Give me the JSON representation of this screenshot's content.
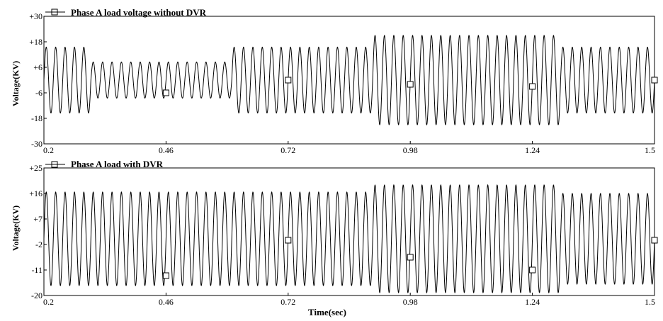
{
  "chart_data": [
    {
      "type": "line",
      "title": "Phase A load voltage without DVR",
      "xlabel": "",
      "ylabel": "Voltage(KV)",
      "xlim": [
        0.2,
        1.5
      ],
      "ylim": [
        -30,
        30
      ],
      "x_ticks": [
        "0.2",
        "0.46",
        "0.72",
        "0.98",
        "1.24",
        "1.5"
      ],
      "y_ticks": [
        "+30",
        "+18",
        "+6",
        "-6",
        "-18",
        "-30"
      ],
      "frequency_hz": 50,
      "series": [
        {
          "name": "Phase A load voltage without DVR",
          "segments": [
            {
              "t_start": 0.2,
              "t_end": 0.3,
              "amplitude": 15.5
            },
            {
              "t_start": 0.3,
              "t_end": 0.6,
              "amplitude": 8.5
            },
            {
              "t_start": 0.6,
              "t_end": 0.9,
              "amplitude": 15.5
            },
            {
              "t_start": 0.9,
              "t_end": 1.3,
              "amplitude": 21
            },
            {
              "t_start": 1.3,
              "t_end": 1.5,
              "amplitude": 15.5
            }
          ],
          "markers": [
            [
              0.46,
              -6
            ],
            [
              0.72,
              0
            ],
            [
              0.98,
              -2
            ],
            [
              1.24,
              -3
            ],
            [
              1.5,
              0
            ]
          ]
        }
      ]
    },
    {
      "type": "line",
      "title": "Phase A load with DVR",
      "xlabel": "Time(sec)",
      "ylabel": "Voltage(KV)",
      "xlim": [
        0.2,
        1.5
      ],
      "ylim": [
        -20,
        25
      ],
      "x_ticks": [
        "0.2",
        "0.46",
        "0.72",
        "0.98",
        "1.24",
        "1.5"
      ],
      "y_ticks": [
        "+25",
        "+16",
        "+7",
        "-2",
        "-11",
        "-20"
      ],
      "frequency_hz": 50,
      "series": [
        {
          "name": "Phase A load with DVR",
          "segments": [
            {
              "t_start": 0.2,
              "t_end": 0.9,
              "amplitude": 16.5
            },
            {
              "t_start": 0.9,
              "t_end": 1.3,
              "amplitude": 19
            },
            {
              "t_start": 1.3,
              "t_end": 1.5,
              "amplitude": 16
            }
          ],
          "markers": [
            [
              0.46,
              -13
            ],
            [
              0.72,
              -0.5
            ],
            [
              0.98,
              -6.5
            ],
            [
              1.24,
              -11
            ],
            [
              1.5,
              -0.5
            ]
          ]
        }
      ]
    }
  ]
}
